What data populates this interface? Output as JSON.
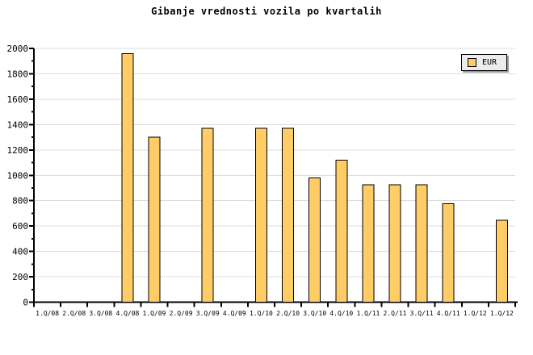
{
  "title": "Gibanje vrednosti vozila po kvartalih",
  "legend": {
    "label": "EUR",
    "position": "top-right",
    "background_color": "#ececec",
    "shadow_color": "#999999"
  },
  "chart_data": {
    "type": "bar",
    "title": "Gibanje vrednosti vozila po kvartalih",
    "series_name": "EUR",
    "categories": [
      "1.Q/08",
      "2.Q/08",
      "3.Q/08",
      "4.Q/08",
      "1.Q/09",
      "2.Q/09",
      "3.Q/09",
      "4.Q/09",
      "1.Q/10",
      "2.Q/10",
      "3.Q/10",
      "4.Q/10",
      "1.Q/11",
      "2.Q/11",
      "3.Q/11",
      "4.Q/11",
      "1.Q/12",
      "1.Q/12"
    ],
    "values": [
      null,
      null,
      null,
      1960,
      1300,
      null,
      1370,
      null,
      1370,
      1370,
      980,
      1120,
      925,
      925,
      925,
      775,
      null,
      645
    ],
    "xlabel": "",
    "ylabel": "",
    "ylim": [
      0,
      2000
    ],
    "y_tick_interval": 200,
    "y_minor_tick_interval": 100,
    "y_tick_labels": [
      "0",
      "200",
      "400",
      "600",
      "800",
      "1000",
      "1200",
      "1400",
      "1600",
      "1800",
      "2000"
    ],
    "grid": "horizontal-major",
    "legend_position": "top-right",
    "bar_color": "#ffcc66",
    "bar_border_color": "#000000",
    "gridline_color": "#dcdcdc",
    "axis_color": "#000000",
    "background_color": "#ffffff"
  }
}
